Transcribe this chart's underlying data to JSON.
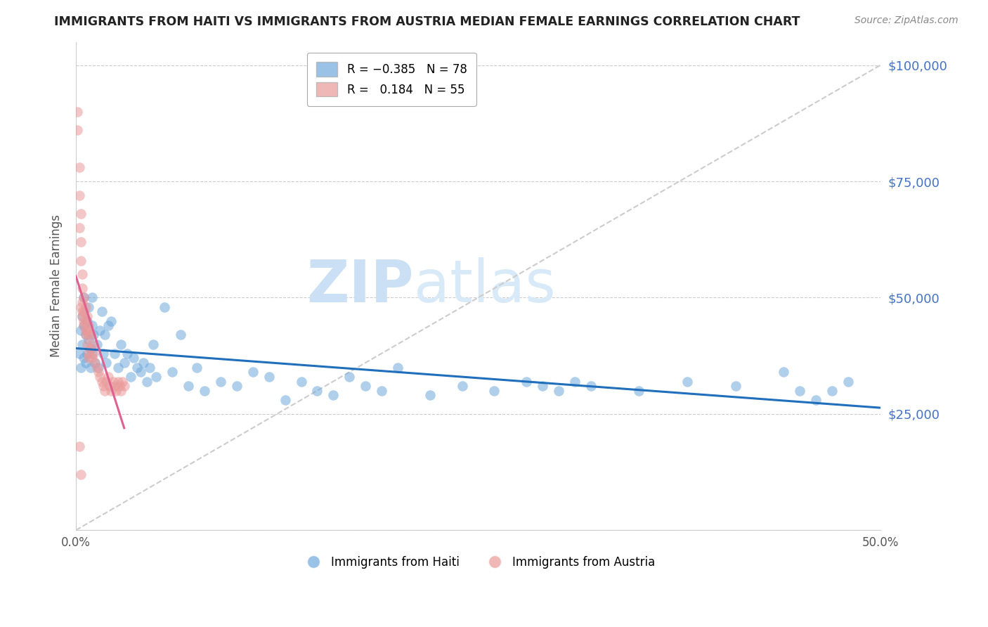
{
  "title": "IMMIGRANTS FROM HAITI VS IMMIGRANTS FROM AUSTRIA MEDIAN FEMALE EARNINGS CORRELATION CHART",
  "source": "Source: ZipAtlas.com",
  "ylabel": "Median Female Earnings",
  "xlim": [
    0.0,
    0.5
  ],
  "ylim": [
    0,
    105000
  ],
  "yticks": [
    0,
    25000,
    50000,
    75000,
    100000
  ],
  "ytick_labels": [
    "",
    "$25,000",
    "$50,000",
    "$75,000",
    "$100,000"
  ],
  "xticks": [
    0.0,
    0.1,
    0.2,
    0.3,
    0.4,
    0.5
  ],
  "haiti_R": -0.385,
  "haiti_N": 78,
  "austria_R": 0.184,
  "austria_N": 55,
  "haiti_color": "#6fa8dc",
  "austria_color": "#ea9999",
  "haiti_line_color": "#1f6fbd",
  "austria_line_color": "#e06090",
  "diagonal_color": "#cccccc",
  "watermark_zip": "ZIP",
  "watermark_atlas": "atlas",
  "watermark_color": "#cce0f5",
  "haiti_x": [
    0.002,
    0.003,
    0.003,
    0.004,
    0.004,
    0.005,
    0.005,
    0.005,
    0.006,
    0.006,
    0.007,
    0.007,
    0.008,
    0.008,
    0.009,
    0.009,
    0.01,
    0.01,
    0.01,
    0.011,
    0.012,
    0.013,
    0.014,
    0.015,
    0.016,
    0.017,
    0.018,
    0.019,
    0.02,
    0.022,
    0.024,
    0.026,
    0.028,
    0.03,
    0.032,
    0.034,
    0.036,
    0.038,
    0.04,
    0.042,
    0.044,
    0.046,
    0.048,
    0.05,
    0.055,
    0.06,
    0.065,
    0.07,
    0.075,
    0.08,
    0.09,
    0.1,
    0.11,
    0.12,
    0.13,
    0.14,
    0.15,
    0.16,
    0.17,
    0.18,
    0.19,
    0.2,
    0.22,
    0.24,
    0.26,
    0.28,
    0.29,
    0.3,
    0.31,
    0.32,
    0.35,
    0.38,
    0.41,
    0.44,
    0.45,
    0.46,
    0.47,
    0.48
  ],
  "haiti_y": [
    38000,
    43000,
    35000,
    46000,
    40000,
    37000,
    44000,
    50000,
    42000,
    36000,
    45000,
    38000,
    48000,
    41000,
    39000,
    35000,
    44000,
    38000,
    50000,
    42000,
    36000,
    40000,
    35000,
    43000,
    47000,
    38000,
    42000,
    36000,
    44000,
    45000,
    38000,
    35000,
    40000,
    36000,
    38000,
    33000,
    37000,
    35000,
    34000,
    36000,
    32000,
    35000,
    40000,
    33000,
    48000,
    34000,
    42000,
    31000,
    35000,
    30000,
    32000,
    31000,
    34000,
    33000,
    28000,
    32000,
    30000,
    29000,
    33000,
    31000,
    30000,
    35000,
    29000,
    31000,
    30000,
    32000,
    31000,
    30000,
    32000,
    31000,
    30000,
    32000,
    31000,
    34000,
    30000,
    28000,
    30000,
    32000
  ],
  "austria_x": [
    0.001,
    0.001,
    0.002,
    0.002,
    0.002,
    0.003,
    0.003,
    0.003,
    0.004,
    0.004,
    0.004,
    0.004,
    0.005,
    0.005,
    0.005,
    0.006,
    0.006,
    0.006,
    0.007,
    0.007,
    0.007,
    0.008,
    0.008,
    0.008,
    0.009,
    0.009,
    0.01,
    0.01,
    0.011,
    0.012,
    0.013,
    0.014,
    0.015,
    0.016,
    0.017,
    0.018,
    0.019,
    0.02,
    0.021,
    0.022,
    0.023,
    0.024,
    0.025,
    0.026,
    0.027,
    0.028,
    0.029,
    0.03,
    0.002,
    0.003,
    0.003,
    0.004,
    0.005,
    0.006,
    0.008
  ],
  "austria_y": [
    90000,
    86000,
    78000,
    72000,
    65000,
    68000,
    62000,
    58000,
    55000,
    52000,
    49000,
    46000,
    50000,
    47000,
    44000,
    48000,
    45000,
    42000,
    46000,
    43000,
    40000,
    44000,
    42000,
    38000,
    42000,
    39000,
    40000,
    37000,
    38000,
    36000,
    35000,
    34000,
    33000,
    32000,
    31000,
    30000,
    32000,
    33000,
    31000,
    30000,
    32000,
    31000,
    30000,
    32000,
    31000,
    30000,
    32000,
    31000,
    18000,
    12000,
    48000,
    47000,
    45000,
    43000,
    37000
  ]
}
